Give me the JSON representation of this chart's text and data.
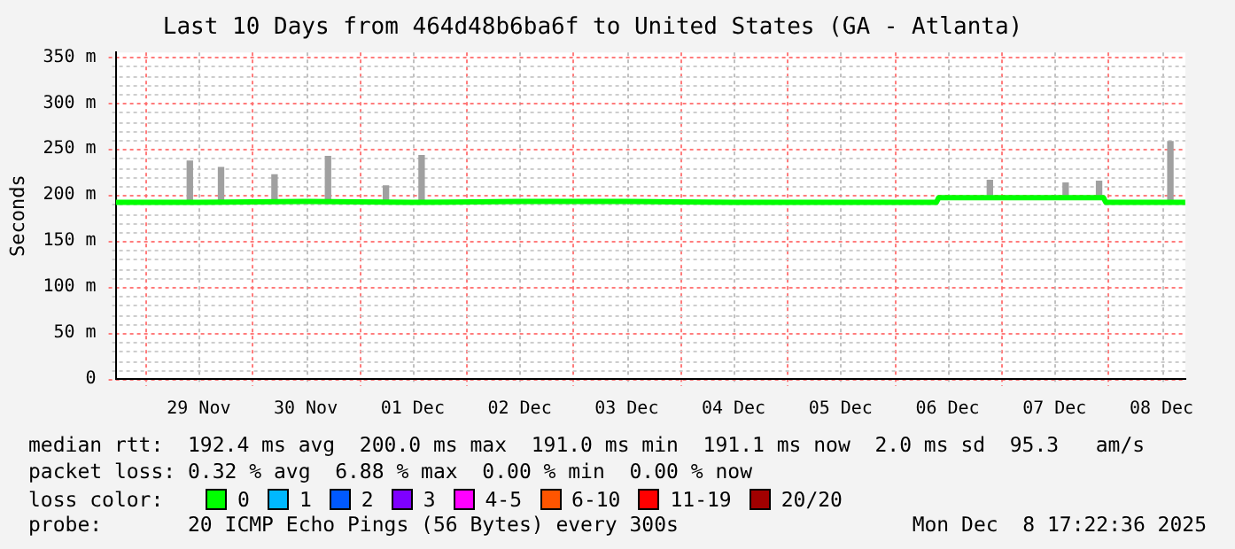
{
  "chart_data": {
    "type": "line",
    "title": "Last 10 Days from 464d48b6ba6f to United States (GA - Atlanta)",
    "ylabel": "Seconds",
    "legend_title": "loss color:",
    "legend": "bottom",
    "grid": true,
    "xlim": [
      "2025-11-28T17:22",
      "2025-12-08T17:22"
    ],
    "xticks": [
      {
        "value": "2025-11-29T00:00",
        "label": null
      },
      {
        "value": "2025-11-29T12:00",
        "label": "29 Nov"
      },
      {
        "value": "2025-11-30T00:00",
        "label": null
      },
      {
        "value": "2025-11-30T12:00",
        "label": "30 Nov"
      },
      {
        "value": "2025-12-01T00:00",
        "label": null
      },
      {
        "value": "2025-12-01T12:00",
        "label": "01 Dec"
      },
      {
        "value": "2025-12-02T00:00",
        "label": null
      },
      {
        "value": "2025-12-02T12:00",
        "label": "02 Dec"
      },
      {
        "value": "2025-12-03T00:00",
        "label": null
      },
      {
        "value": "2025-12-03T12:00",
        "label": "03 Dec"
      },
      {
        "value": "2025-12-04T00:00",
        "label": null
      },
      {
        "value": "2025-12-04T12:00",
        "label": "04 Dec"
      },
      {
        "value": "2025-12-05T00:00",
        "label": null
      },
      {
        "value": "2025-12-05T12:00",
        "label": "05 Dec"
      },
      {
        "value": "2025-12-06T00:00",
        "label": null
      },
      {
        "value": "2025-12-06T12:00",
        "label": "06 Dec"
      },
      {
        "value": "2025-12-07T00:00",
        "label": null
      },
      {
        "value": "2025-12-07T12:00",
        "label": "07 Dec"
      },
      {
        "value": "2025-12-08T00:00",
        "label": null
      },
      {
        "value": "2025-12-08T12:00",
        "label": "08 Dec"
      }
    ],
    "ylim": [
      0,
      355
    ],
    "yticks": [
      {
        "value": 0,
        "label": "0"
      },
      {
        "value": 10,
        "label": null
      },
      {
        "value": 20,
        "label": null
      },
      {
        "value": 30,
        "label": null
      },
      {
        "value": 40,
        "label": null
      },
      {
        "value": 50,
        "label": "50 m"
      },
      {
        "value": 60,
        "label": null
      },
      {
        "value": 70,
        "label": null
      },
      {
        "value": 80,
        "label": null
      },
      {
        "value": 90,
        "label": null
      },
      {
        "value": 100,
        "label": "100 m"
      },
      {
        "value": 110,
        "label": null
      },
      {
        "value": 120,
        "label": null
      },
      {
        "value": 130,
        "label": null
      },
      {
        "value": 140,
        "label": null
      },
      {
        "value": 150,
        "label": "150 m"
      },
      {
        "value": 160,
        "label": null
      },
      {
        "value": 170,
        "label": null
      },
      {
        "value": 180,
        "label": null
      },
      {
        "value": 190,
        "label": null
      },
      {
        "value": 200,
        "label": "200 m"
      },
      {
        "value": 210,
        "label": null
      },
      {
        "value": 220,
        "label": null
      },
      {
        "value": 230,
        "label": null
      },
      {
        "value": 240,
        "label": null
      },
      {
        "value": 250,
        "label": "250 m"
      },
      {
        "value": 260,
        "label": null
      },
      {
        "value": 270,
        "label": null
      },
      {
        "value": 280,
        "label": null
      },
      {
        "value": 290,
        "label": null
      },
      {
        "value": 300,
        "label": "300 m"
      },
      {
        "value": 310,
        "label": null
      },
      {
        "value": 320,
        "label": null
      },
      {
        "value": 330,
        "label": null
      },
      {
        "value": 340,
        "label": null
      },
      {
        "value": 350,
        "label": "350 m"
      }
    ],
    "series": [
      {
        "type": "bar",
        "color": "#a0a0a0",
        "x": [
          "2025-11-29T10:00",
          "2025-11-29T17:00",
          "2025-11-30T05:00",
          "2025-11-30T17:00",
          "2025-12-01T06:00",
          "2025-12-01T14:00",
          "2025-12-06T21:30",
          "2025-12-07T14:30",
          "2025-12-07T22:00",
          "2025-12-08T14:00"
        ],
        "base": [
          192,
          192,
          192,
          192,
          192,
          192,
          197,
          197,
          197,
          192
        ],
        "values": [
          45,
          38,
          30,
          50,
          18,
          51,
          19,
          16,
          18,
          66
        ]
      },
      {
        "name": "0",
        "color": "#00ff00",
        "x": [
          "2025-11-28T17:22",
          "2025-11-29T12:00",
          "2025-11-30T12:00",
          "2025-12-01T12:00",
          "2025-12-02T12:00",
          "2025-12-03T12:00",
          "2025-12-04T12:00",
          "2025-12-05T12:00",
          "2025-12-06T09:30",
          "2025-12-06T10:00",
          "2025-12-07T23:00",
          "2025-12-07T23:30",
          "2025-12-08T17:20"
        ],
        "values": [
          192,
          192,
          193,
          192,
          193,
          193,
          192,
          192,
          192,
          197,
          197,
          192,
          192
        ]
      },
      {
        "name": "1",
        "color": "#00b8ff"
      },
      {
        "name": "2",
        "color": "#0059ff"
      },
      {
        "name": "3",
        "color": "#7e00ff"
      },
      {
        "name": "4-5",
        "color": "#ff00ff"
      },
      {
        "name": "6-10",
        "color": "#ff5500"
      },
      {
        "name": "11-19",
        "color": "#ff0000"
      },
      {
        "name": "20/20",
        "color": "#a10000"
      }
    ],
    "annotations": [
      "median rtt:  192.4 ms avg  200.0 ms max  191.0 ms min  191.1 ms now  2.0 ms sd  95.3   am/s",
      "packet loss: 0.32 % avg  6.88 % max  0.00 % min  0.00 % now",
      "probe:       20 ICMP Echo Pings (56 Bytes) every 300s",
      "Mon Dec  8 17:22:36 2025"
    ]
  }
}
